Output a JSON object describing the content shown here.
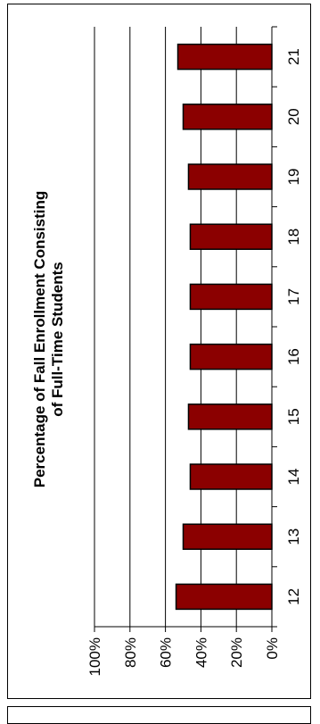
{
  "chart_data": {
    "type": "bar",
    "orientation": "rotated",
    "title_lines": [
      "Percentage of Fall Enrollment Consisting",
      "of Full-Time Students"
    ],
    "xlabel": "",
    "ylabel": "",
    "categories": [
      "12",
      "13",
      "14",
      "15",
      "16",
      "17",
      "18",
      "19",
      "20",
      "21"
    ],
    "values": [
      54,
      50,
      46,
      47,
      46,
      46,
      46,
      47,
      50,
      53
    ],
    "ylim": [
      0,
      100
    ],
    "y_ticks": [
      "0%",
      "20%",
      "40%",
      "60%",
      "80%",
      "100%"
    ],
    "grid": true,
    "bar_color": "#8b0000",
    "bar_edge_color": "#000000"
  }
}
